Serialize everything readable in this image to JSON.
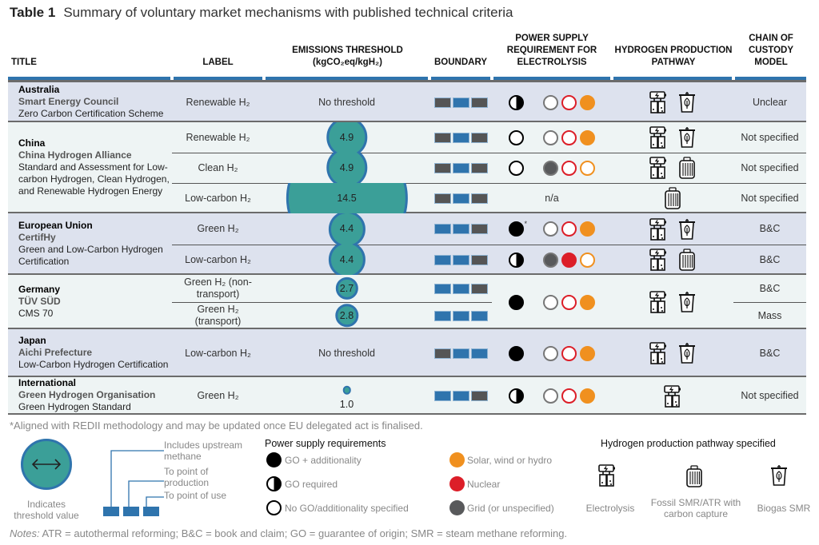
{
  "table": {
    "number": "Table 1",
    "title": "Summary of voluntary market mechanisms with published technical criteria"
  },
  "columns": {
    "title": "TITLE",
    "label": "LABEL",
    "threshold": "EMISSIONS THRESHOLD (kgCO₂eq/kgH₂)",
    "boundary": "BOUNDARY",
    "power": "POWER SUPPLY REQUIREMENT FOR ELECTROLYSIS",
    "pathway": "HYDROGEN PRODUCTION PATHWAY",
    "custody": "CHAIN OF CUSTODY MODEL"
  },
  "colors": {
    "included": "#2f74ad",
    "excluded": "#555555",
    "threshold_fill": "#3b9f98",
    "solar": "#f0901f",
    "nuclear": "#dc1e28",
    "grid": "#58595b",
    "band_a": "#dde2ee",
    "band_b": "#eef4f4"
  },
  "groups": [
    {
      "region": "Australia",
      "org": "Smart Energy Council",
      "scheme": "Zero Carbon Certification Scheme",
      "rows": [
        {
          "label": "Renewable H₂",
          "threshold": "No threshold",
          "boundary": [
            false,
            true,
            false
          ],
          "power": {
            "go": "half",
            "grid": false,
            "nuclear": false,
            "renewable": true
          },
          "pathway": [
            "electrolysis",
            "biogas"
          ],
          "custody": "Unclear"
        }
      ]
    },
    {
      "region": "China",
      "org": "China Hydrogen Alliance",
      "scheme": "Standard and Assessment for Low-carbon Hydrogen, Clean Hydrogen, and Renewable Hydrogen Energy",
      "rows": [
        {
          "label": "Renewable H₂",
          "threshold": 4.9,
          "boundary": [
            false,
            true,
            false
          ],
          "power": {
            "go": "none",
            "grid": false,
            "nuclear": false,
            "renewable": true
          },
          "pathway": [
            "electrolysis",
            "biogas"
          ],
          "custody": "Not specified"
        },
        {
          "label": "Clean H₂",
          "threshold": 4.9,
          "boundary": [
            false,
            true,
            false
          ],
          "power": {
            "go": "none",
            "grid": true,
            "nuclear": false,
            "renewable": false
          },
          "pathway": [
            "electrolysis",
            "fossil"
          ],
          "custody": "Not specified"
        },
        {
          "label": "Low-carbon H₂",
          "threshold": 14.5,
          "boundary": [
            false,
            true,
            false
          ],
          "power": "n/a",
          "pathway": [
            "fossil"
          ],
          "custody": "Not specified"
        }
      ]
    },
    {
      "region": "European Union",
      "org": "CertifHy",
      "scheme": "Green and Low-Carbon Hydrogen Certification",
      "rows": [
        {
          "label": "Green H₂",
          "threshold": 4.4,
          "boundary": [
            true,
            true,
            false
          ],
          "power": {
            "go": "full",
            "footnote": "*",
            "grid": false,
            "nuclear": false,
            "renewable": true
          },
          "pathway": [
            "electrolysis",
            "biogas"
          ],
          "custody": "B&C"
        },
        {
          "label": "Low-carbon H₂",
          "threshold": 4.4,
          "boundary": [
            true,
            true,
            false
          ],
          "power": {
            "go": "half",
            "grid": true,
            "nuclear": true,
            "renewable": false
          },
          "pathway": [
            "electrolysis",
            "fossil"
          ],
          "custody": "B&C"
        }
      ]
    },
    {
      "region": "Germany",
      "org": "TÜV SÜD",
      "scheme": "CMS 70",
      "power": {
        "go": "full",
        "grid": false,
        "nuclear": false,
        "renewable": true
      },
      "pathway": [
        "electrolysis",
        "biogas"
      ],
      "rows": [
        {
          "label": "Green H₂ (non-transport)",
          "threshold": 2.7,
          "boundary": [
            true,
            true,
            false
          ],
          "custody": "B&C"
        },
        {
          "label": "Green H₂ (transport)",
          "threshold": 2.8,
          "boundary": [
            true,
            true,
            true
          ],
          "custody": "Mass"
        }
      ]
    },
    {
      "region": "Japan",
      "org": "Aichi Prefecture",
      "scheme": "Low-Carbon Hydrogen Certification",
      "rows": [
        {
          "label": "Low-carbon H₂",
          "threshold": "No threshold",
          "boundary": [
            false,
            true,
            true
          ],
          "power": {
            "go": "full",
            "grid": false,
            "nuclear": false,
            "renewable": true
          },
          "pathway": [
            "electrolysis",
            "biogas"
          ],
          "custody": "B&C"
        }
      ]
    },
    {
      "region": "International",
      "org": "Green Hydrogen Organisation",
      "scheme": "Green Hydrogen Standard",
      "rows": [
        {
          "label": "Green H₂",
          "threshold": 1.0,
          "threshold_text": "1.0",
          "boundary": [
            true,
            true,
            false
          ],
          "power": {
            "go": "half",
            "grid": false,
            "nuclear": false,
            "renewable": true
          },
          "pathway": [
            "electrolysis"
          ],
          "custody": "Not specified"
        }
      ]
    }
  ],
  "footnote": "*Aligned with REDII methodology and may be updated once EU delegated act is finalised.",
  "legend": {
    "threshold": "Indicates threshold value",
    "boundary": [
      "Includes upstream methane",
      "To point of production",
      "To point of use"
    ],
    "power_title": "Power supply requirements",
    "power": [
      "GO + additionality",
      "GO required",
      "No GO/additionality specified"
    ],
    "sources": [
      "Solar, wind or hydro",
      "Nuclear",
      "Grid (or unspecified)"
    ],
    "pathway_title": "Hydrogen production pathway specified",
    "pathway": [
      "Electrolysis",
      "Fossil SMR/ATR with carbon capture",
      "Biogas SMR"
    ]
  },
  "notes_label": "Notes:",
  "notes": "ATR = autothermal reforming; B&C = book and claim; GO = guarantee of origin; SMR = steam methane reforming."
}
